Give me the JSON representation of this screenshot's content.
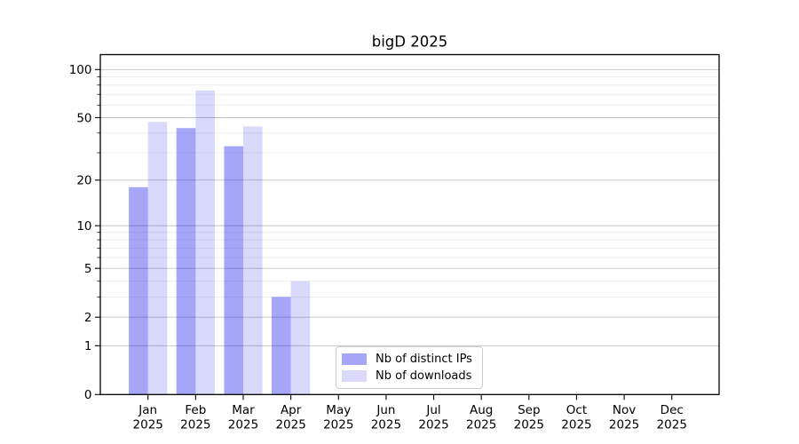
{
  "chart_data": {
    "type": "bar",
    "title": "bigD 2025",
    "categories": [
      "Jan",
      "Feb",
      "Mar",
      "Apr",
      "May",
      "Jun",
      "Jul",
      "Aug",
      "Sep",
      "Oct",
      "Nov",
      "Dec"
    ],
    "category_year": "2025",
    "series": [
      {
        "name": "Nb of distinct IPs",
        "swatch": "#a6a6f9",
        "fill": "rgba(0,0,238,0.35)",
        "values": [
          18,
          43,
          33,
          3,
          0,
          0,
          0,
          0,
          0,
          0,
          0,
          0
        ]
      },
      {
        "name": "Nb of downloads",
        "swatch": "#d9d9fc",
        "fill": "rgba(0,0,238,0.15)",
        "values": [
          47,
          74,
          44,
          4,
          0,
          0,
          0,
          0,
          0,
          0,
          0,
          0
        ]
      }
    ],
    "xlabel": "",
    "ylabel": "",
    "yscale": "log10(1+x)",
    "ylim": [
      0,
      124
    ],
    "yticks": [
      0,
      1,
      2,
      5,
      10,
      20,
      50,
      100
    ],
    "yticks_minor": [
      3,
      4,
      6,
      7,
      8,
      9,
      30,
      40,
      60,
      70,
      80,
      90
    ],
    "grid": "horizontal major and minor",
    "legend_position": "lower center",
    "colors": {
      "grid_major": "#c2c2c2",
      "grid_minor": "#ebebeb",
      "frame": "#000000",
      "text": "#000000",
      "background": "#ffffff"
    }
  }
}
